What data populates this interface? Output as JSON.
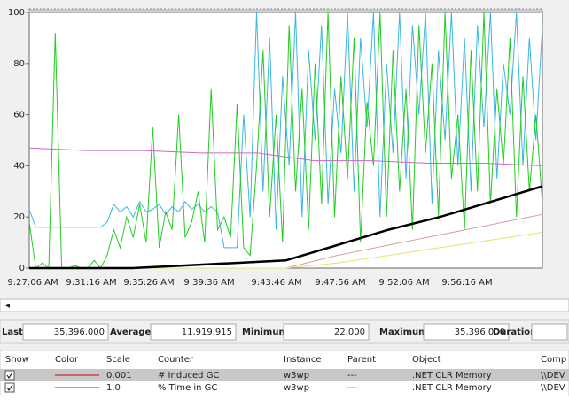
{
  "chart_data": {
    "type": "line",
    "ylim": [
      0,
      100
    ],
    "yticks": [
      0,
      20,
      40,
      60,
      80,
      100
    ],
    "x_tick_labels": [
      "9:27:06 AM",
      "9:31:16 AM",
      "9:35:26 AM",
      "9:39:36 AM",
      "9:43:46 AM",
      "9:47:56 AM",
      "9:52:06 AM",
      "9:56:16 AM"
    ],
    "series": [
      {
        "color": "#3cb6e0",
        "values": [
          23,
          16,
          16,
          16,
          16,
          16,
          16,
          16,
          16,
          16,
          16,
          16,
          18,
          25,
          22,
          24,
          20,
          26,
          22,
          23,
          25,
          21,
          24,
          22,
          26,
          23,
          25,
          22,
          24,
          22,
          8,
          8,
          8,
          60,
          20,
          100,
          30,
          90,
          15,
          75,
          40,
          100,
          20,
          85,
          50,
          95,
          25,
          70,
          45,
          100,
          30,
          90,
          55,
          100,
          20,
          80,
          45,
          100,
          35,
          95,
          60,
          100,
          25,
          85,
          50,
          100,
          40,
          90,
          30,
          95,
          55,
          100,
          35,
          80,
          60,
          100,
          40,
          90,
          50,
          95
        ]
      },
      {
        "color": "#22cc22",
        "values": [
          18,
          0,
          2,
          0,
          92,
          0,
          0,
          1,
          0,
          0,
          3,
          0,
          5,
          15,
          8,
          20,
          12,
          25,
          10,
          55,
          8,
          22,
          15,
          60,
          12,
          18,
          30,
          10,
          70,
          15,
          20,
          12,
          64,
          8,
          5,
          40,
          85,
          20,
          60,
          10,
          95,
          30,
          70,
          15,
          80,
          25,
          100,
          20,
          75,
          35,
          90,
          10,
          65,
          40,
          100,
          20,
          85,
          30,
          70,
          15,
          95,
          45,
          80,
          20,
          100,
          35,
          60,
          15,
          85,
          30,
          100,
          25,
          70,
          40,
          90,
          20,
          75,
          30,
          60,
          25
        ]
      },
      {
        "color": "#cc66cc",
        "values": [
          47,
          46,
          46,
          45,
          45,
          42,
          42,
          41,
          41,
          40
        ]
      },
      {
        "color": "#d8a0a0",
        "values": [
          0,
          0,
          0,
          0,
          0,
          0,
          5,
          9,
          13,
          17,
          21
        ]
      },
      {
        "color": "#e8e070",
        "values": [
          0,
          0,
          0,
          0,
          0,
          0,
          2,
          5,
          8,
          11,
          14
        ]
      },
      {
        "color": "#000000",
        "values": [
          0,
          0,
          0,
          1,
          2,
          3,
          9,
          15,
          20,
          26,
          32
        ]
      }
    ]
  },
  "stats": [
    {
      "label": "Last",
      "value": "35,396.000"
    },
    {
      "label": "Average",
      "value": "11,919.915"
    },
    {
      "label": "Minimum",
      "value": "22.000"
    },
    {
      "label": "Maximum",
      "value": "35,396.000"
    },
    {
      "label": "Duration",
      "value": ""
    }
  ],
  "counter_table": {
    "headers": [
      "Show",
      "Color",
      "Scale",
      "Counter",
      "Instance",
      "Parent",
      "Object",
      "Comp"
    ],
    "rows": [
      {
        "color": "#d04040",
        "cells": [
          "0.001",
          "# Induced GC",
          "w3wp",
          "---",
          ".NET CLR Memory",
          "\\\\DEV"
        ]
      },
      {
        "color": "#22cc22",
        "cells": [
          "1.0",
          "% Time in GC",
          "w3wp",
          "---",
          ".NET CLR Memory",
          "\\\\DEV"
        ]
      }
    ]
  }
}
